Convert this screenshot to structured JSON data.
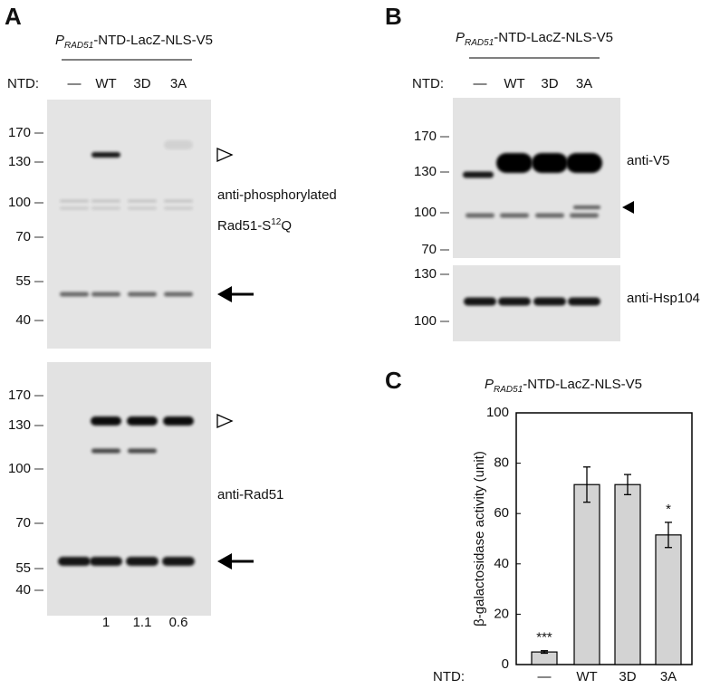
{
  "panel_a": {
    "letter": "A",
    "title": {
      "italic": "P",
      "subscript": "RAD51",
      "rest": "-NTD-LacZ-NLS-V5"
    },
    "lane_header": "NTD:",
    "lanes": [
      "—",
      "WT",
      "3D",
      "3A"
    ],
    "blot_top": {
      "markers": [
        170,
        130,
        100,
        70,
        55,
        40
      ],
      "antibody": "anti-phosphorylated",
      "antibody_line2": {
        "text": "Rad51-S",
        "superscript": "12",
        "tail": "Q"
      }
    },
    "blot_bottom": {
      "markers": [
        170,
        130,
        100,
        70,
        55,
        40
      ],
      "antibody": "anti-Rad51"
    },
    "quantification": [
      "1",
      "1.1",
      "0.6"
    ]
  },
  "panel_b": {
    "letter": "B",
    "title": {
      "italic": "P",
      "subscript": "RAD51",
      "rest": "-NTD-LacZ-NLS-V5"
    },
    "lane_header": "NTD:",
    "lanes": [
      "—",
      "WT",
      "3D",
      "3A"
    ],
    "blot_top": {
      "markers": [
        170,
        130,
        100,
        70
      ],
      "antibody": "anti-V5"
    },
    "blot_bottom": {
      "markers": [
        130,
        100
      ],
      "antibody": "anti-Hsp104"
    }
  },
  "chart_data": {
    "type": "bar",
    "letter": "C",
    "title": {
      "italic": "P",
      "subscript": "RAD51",
      "rest": "-NTD-LacZ-NLS-V5"
    },
    "x_label": "NTD:",
    "y_label": "β-galactosidase activity (unit)",
    "categories": [
      "—",
      "WT",
      "3D",
      "3A"
    ],
    "values": [
      5,
      71.5,
      71.5,
      51.5
    ],
    "errors": [
      0.5,
      7,
      4,
      5
    ],
    "annotations": [
      "***",
      null,
      null,
      "*"
    ],
    "color": "#d3d3d3",
    "ylim": [
      0,
      100
    ],
    "yticks": [
      0,
      20,
      40,
      60,
      80,
      100
    ]
  }
}
